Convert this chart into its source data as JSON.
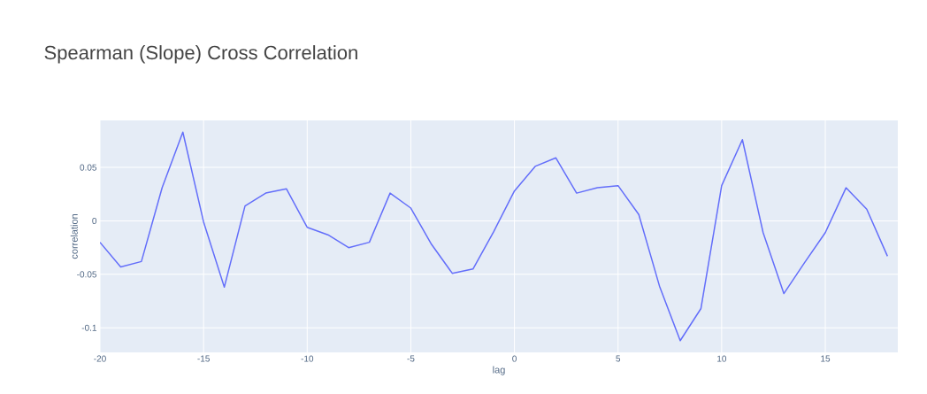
{
  "chart_data": {
    "type": "line",
    "title": "Spearman (Slope) Cross Correlation",
    "xlabel": "lag",
    "ylabel": "correlation",
    "x": [
      -20,
      -19,
      -18,
      -17,
      -16,
      -15,
      -14,
      -13,
      -12,
      -11,
      -10,
      -9,
      -8,
      -7,
      -6,
      -5,
      -4,
      -3,
      -2,
      -1,
      0,
      1,
      2,
      3,
      4,
      5,
      6,
      7,
      8,
      9,
      10,
      11,
      12,
      13,
      14,
      15,
      16,
      17,
      18
    ],
    "series": [
      {
        "color": "#636efa",
        "values": [
          -0.02,
          -0.043,
          -0.038,
          0.031,
          0.083,
          -0.001,
          -0.062,
          0.014,
          0.026,
          0.03,
          -0.006,
          -0.013,
          -0.025,
          -0.02,
          0.026,
          0.012,
          -0.022,
          -0.049,
          -0.045,
          -0.01,
          0.028,
          0.051,
          0.059,
          0.026,
          0.031,
          0.033,
          0.006,
          -0.061,
          -0.112,
          -0.082,
          0.033,
          0.076,
          -0.011,
          -0.068,
          -0.039,
          -0.011,
          0.031,
          0.011,
          -0.033
        ]
      }
    ],
    "xlim": [
      -20,
      18.5
    ],
    "ylim": [
      -0.123,
      0.094
    ],
    "xticks": [
      -20,
      -15,
      -10,
      -5,
      0,
      5,
      10,
      15
    ],
    "yticks": [
      -0.1,
      -0.05,
      0,
      0.05
    ],
    "grid": true,
    "marker": "none",
    "line_style": "solid"
  }
}
